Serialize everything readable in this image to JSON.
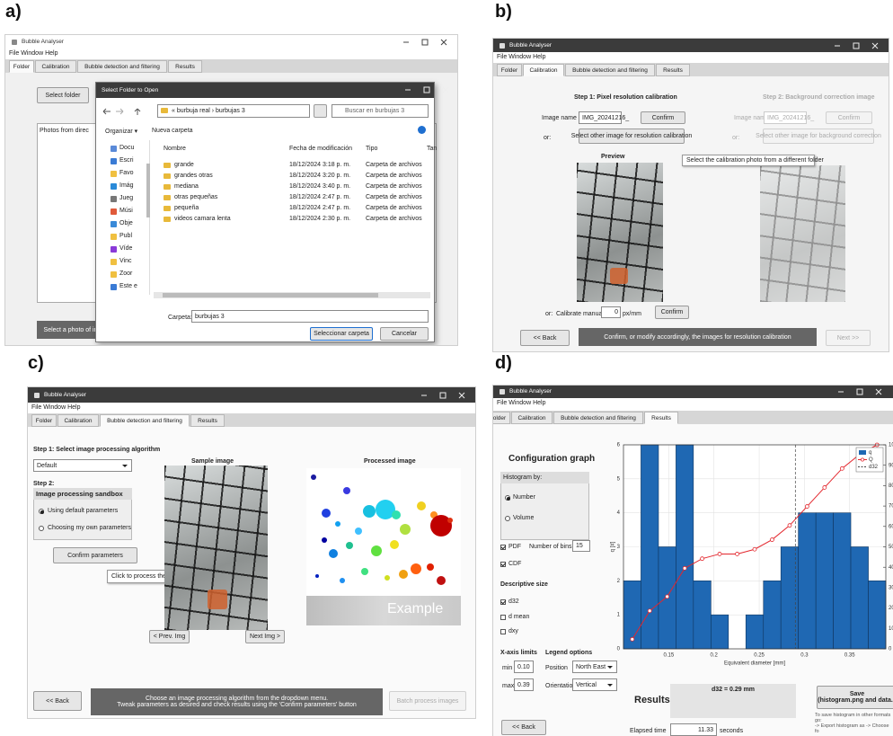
{
  "panels": {
    "a": {
      "label": "a)",
      "window_title": "Bubble Analyser",
      "menu": "File Window Help",
      "tabs": [
        "Folder",
        "Calibration",
        "Bubble detection and filtering",
        "Results"
      ],
      "select_folder": "Select folder",
      "photos_label": "Photos from direc",
      "status": "Select a photo of in",
      "dialog": {
        "title": "Select Folder to Open",
        "path": "« burbuja real  ›  burbujas 3",
        "search": "Buscar en burbujas 3",
        "organize": "Organizar ▾",
        "new_folder": "Nueva carpeta",
        "columns": [
          "Nombre",
          "Fecha de modificación",
          "Tipo",
          "Tan"
        ],
        "nav": [
          "Docu",
          "Escri",
          "Favo",
          "Imág",
          "Jueg",
          "Músi",
          "Obje",
          "Publ",
          "Víde",
          "Vinc",
          "Zoor",
          "Este e"
        ],
        "files": [
          [
            "grande",
            "18/12/2024 3:18 p. m.",
            "Carpeta de archivos"
          ],
          [
            "grandes otras",
            "18/12/2024 3:20 p. m.",
            "Carpeta de archivos"
          ],
          [
            "mediana",
            "18/12/2024 3:40 p. m.",
            "Carpeta de archivos"
          ],
          [
            "otras pequeñas",
            "18/12/2024 2:47 p. m.",
            "Carpeta de archivos"
          ],
          [
            "pequeña",
            "18/12/2024 2:47 p. m.",
            "Carpeta de archivos"
          ],
          [
            "videos camara lenta",
            "18/12/2024 2:30 p. m.",
            "Carpeta de archivos"
          ]
        ],
        "folder_label": "Carpeta:",
        "folder_value": "burbujas 3",
        "select_button": "Seleccionar carpeta",
        "cancel": "Cancelar"
      }
    },
    "b": {
      "label": "b)",
      "window_title": "Bubble Analyser",
      "menu": "File Window Help",
      "tabs": [
        "Folder",
        "Calibration",
        "Bubble detection and filtering",
        "Results"
      ],
      "step1": "Step 1: Pixel resolution calibration",
      "step2": "Step 2: Background correction image",
      "image_name_label": "Image name",
      "image_name_value": "IMG_20241216_",
      "confirm": "Confirm",
      "image_name_label_2": "Image name",
      "image_name_value_2": "IMG_20241216_",
      "confirm_2": "Confirm",
      "or": "or:",
      "select_other": "Select other image for resolution calibration",
      "or_2": "or:",
      "select_other_bg": "Select other image for background correction",
      "preview": "Preview",
      "tooltip": "Select the calibration photo from a different folder",
      "manual_or": "or:",
      "manual_label": "Calibrate manually",
      "manual_value": "0",
      "manual_unit": "px/mm",
      "manual_confirm": "Confirm",
      "back": "<< Back",
      "status": "Confirm, or modify accordingly, the images for resolution calibration",
      "next": "Next >>"
    },
    "c": {
      "label": "c)",
      "window_title": "Bubble Analyser",
      "menu": "File Window Help",
      "tabs": [
        "Folder",
        "Calibration",
        "Bubble detection and filtering",
        "Results"
      ],
      "step1": "Step 1: Select image processing algorithm",
      "algorithm": "Default",
      "step2": "Step 2:",
      "sandbox_title": "Image processing sandbox",
      "radio_default": "Using default parameters",
      "radio_own": "Choosing my own parameters",
      "confirm_params": "Confirm parameters",
      "tooltip": "Click to process the sample image",
      "sample_title": "Sample image",
      "processed_title": "Processed image",
      "example": "Example",
      "prev": "< Prev. Img",
      "next": "Next Img >",
      "back": "<< Back",
      "status": [
        "Choose an image processing algorithm from the dropdown menu.",
        "Tweak parameters as desired and check results using the 'Confirm parameters' button"
      ],
      "batch": "Batch process images"
    },
    "d": {
      "label": "d)",
      "window_title": "Bubble Analyser",
      "menu": "File Window Help",
      "tabs": [
        "Folder",
        "Calibration",
        "Bubble detection and filtering",
        "Results"
      ],
      "config_title": "Configuration graph",
      "histogram_by": "Histogram by:",
      "number": "Number",
      "volume": "Volume",
      "pdf": "PDF",
      "bins_label": "Number of bins",
      "bins_value": "15",
      "cdf": "CDF",
      "descriptive": "Descriptive size",
      "d32": "d32",
      "dmean": "d mean",
      "dxy": "dxy",
      "xlimits": "X-axis limits",
      "legend_options": "Legend options",
      "min_label": "min",
      "min_value": "0.10",
      "max_label": "max",
      "max_value": "0.39",
      "position_label": "Position",
      "position_value": "North East",
      "orientation_label": "Orientation",
      "orientation_value": "Vertical",
      "results": "Results:",
      "d32_result": "d32 = 0.29 mm",
      "save": "Save\n(histogram.png and data.c",
      "save_note": "To save histogram in other formats go:\n-> Export histogram as -> Choose fo",
      "back": "<< Back",
      "elapsed_label": "Elapsed time",
      "elapsed_value": "11.33",
      "elapsed_unit": "seconds",
      "chart": {
        "type": "histogram",
        "xlabel": "Equivalent diameter [mm]",
        "ylabel": "q [#]",
        "bins": [
          0.1,
          0.1193,
          0.1387,
          0.158,
          0.1773,
          0.1967,
          0.216,
          0.2353,
          0.2547,
          0.274,
          0.2933,
          0.3127,
          0.332,
          0.3513,
          0.3707,
          0.39
        ],
        "series": [
          {
            "name": "q",
            "color": "#1f68b3",
            "values": [
              2,
              6,
              3,
              6,
              2,
              1,
              0,
              1,
              2,
              3,
              4,
              4,
              4,
              3,
              2
            ]
          },
          {
            "name": "Q",
            "color": "#e3262d",
            "type": "line",
            "axis": "y2",
            "x": [
              0.1097,
              0.129,
              0.1483,
              0.1677,
              0.187,
              0.2063,
              0.2257,
              0.245,
              0.2643,
              0.2837,
              0.303,
              0.3223,
              0.3417,
              0.361,
              0.3803
            ],
            "values": [
              4.7,
              18.6,
              25.6,
              39.5,
              44.2,
              46.5,
              46.5,
              48.8,
              53.5,
              60.5,
              69.8,
              79.1,
              88.4,
              95.3,
              100
            ]
          }
        ],
        "reference_lines": [
          {
            "name": "d32",
            "value": 0.29
          }
        ],
        "xlim": [
          0.1,
          0.39
        ],
        "xticks": [
          0.15,
          0.2,
          0.25,
          0.3,
          0.35
        ],
        "ylim": [
          0,
          6
        ],
        "yticks": [
          0,
          1,
          2,
          3,
          4,
          5,
          6
        ],
        "y2lim": [
          0,
          100
        ],
        "y2ticks": [
          0,
          10,
          20,
          30,
          40,
          50,
          60,
          70,
          80,
          90,
          100
        ],
        "grid": true,
        "legend": "north-east"
      }
    }
  }
}
